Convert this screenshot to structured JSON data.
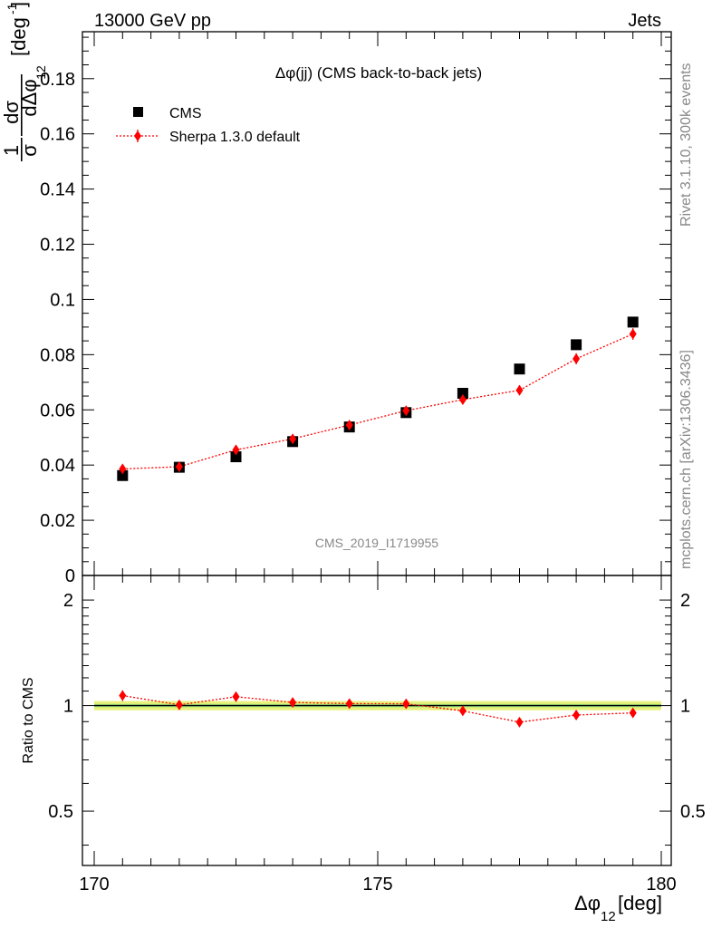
{
  "header": {
    "left": "13000 GeV pp",
    "right": "Jets"
  },
  "side": {
    "top": "Rivet 3.1.10,  300k events",
    "bottom": "mcplots.cern.ch [arXiv:1306.3436]"
  },
  "chart_data": [
    {
      "type": "scatter",
      "title": "Δφ(jj) (CMS back-to-back jets)",
      "watermark": "CMS_2019_I1719955",
      "ylabel_parts": [
        "1",
        "dσ",
        "σ",
        "dΔφ",
        "12",
        "[deg",
        "-1",
        "]"
      ],
      "xlim": [
        170,
        180
      ],
      "ylim": [
        0,
        0.197
      ],
      "yticks": [
        0,
        0.02,
        0.04,
        0.06,
        0.08,
        0.1,
        0.12,
        0.14,
        0.16,
        0.18
      ],
      "ytick_labels": [
        "0",
        "0.02",
        "0.04",
        "0.06",
        "0.08",
        "0.1",
        "0.12",
        "0.14",
        "0.16",
        "0.18"
      ],
      "legend_position": "top-left",
      "x": [
        170.5,
        171.5,
        172.5,
        173.5,
        174.5,
        175.5,
        176.5,
        177.5,
        178.5,
        179.5
      ],
      "series": [
        {
          "name": "CMS",
          "color": "#000000",
          "marker": "square",
          "values": [
            0.0362,
            0.0392,
            0.043,
            0.0485,
            0.0538,
            0.059,
            0.066,
            0.0748,
            0.0836,
            0.0918
          ]
        },
        {
          "name": "Sherpa 1.3.0 default",
          "color": "#ff0000",
          "marker": "diamond",
          "line": "dotted",
          "values": [
            0.0386,
            0.0394,
            0.0455,
            0.0495,
            0.0545,
            0.0597,
            0.0637,
            0.0671,
            0.0785,
            0.0875
          ],
          "errors": [
            0.0013,
            0.0012,
            0.0014,
            0.0014,
            0.0014,
            0.0016,
            0.0017,
            0.0018,
            0.002,
            0.0021
          ]
        }
      ]
    },
    {
      "type": "scatter",
      "ylabel": "Ratio to CMS",
      "xlabel_parts": [
        "Δφ",
        "12",
        " [deg]"
      ],
      "xlim": [
        170,
        180
      ],
      "ylim": [
        0.35,
        2.35
      ],
      "scale": "log",
      "yticks": [
        0.5,
        1,
        2
      ],
      "ytick_labels": [
        "0.5",
        "1",
        "2"
      ],
      "xticks": [
        170,
        175,
        180
      ],
      "xtick_labels": [
        "170",
        "175",
        "180"
      ],
      "x": [
        170.5,
        171.5,
        172.5,
        173.5,
        174.5,
        175.5,
        176.5,
        177.5,
        178.5,
        179.5
      ],
      "band": {
        "color": "#e8f27a",
        "inner_color": "#9ce07a",
        "half_width": 0.03
      },
      "series": [
        {
          "name": "Sherpa 1.3.0 default",
          "color": "#ff0000",
          "marker": "diamond",
          "line": "dotted",
          "values": [
            1.068,
            1.005,
            1.06,
            1.021,
            1.013,
            1.012,
            0.966,
            0.897,
            0.94,
            0.953
          ],
          "errors": [
            0.037,
            0.031,
            0.032,
            0.029,
            0.026,
            0.027,
            0.026,
            0.024,
            0.024,
            0.023
          ]
        }
      ]
    }
  ]
}
